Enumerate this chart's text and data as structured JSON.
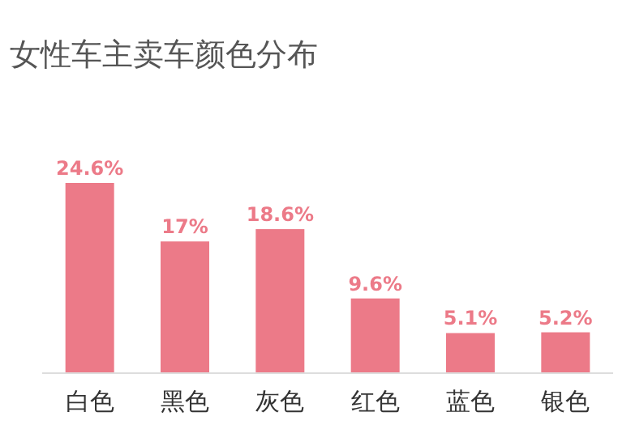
{
  "chart_data": {
    "type": "bar",
    "title": "女性车主卖车颜色分布",
    "categories": [
      "白色",
      "黑色",
      "灰色",
      "红色",
      "蓝色",
      "银色"
    ],
    "values": [
      24.6,
      17,
      18.6,
      9.6,
      5.1,
      5.2
    ],
    "value_labels": [
      "24.6%",
      "17%",
      "18.6%",
      "9.6%",
      "5.1%",
      "5.2%"
    ],
    "color": "#ec7a88"
  }
}
